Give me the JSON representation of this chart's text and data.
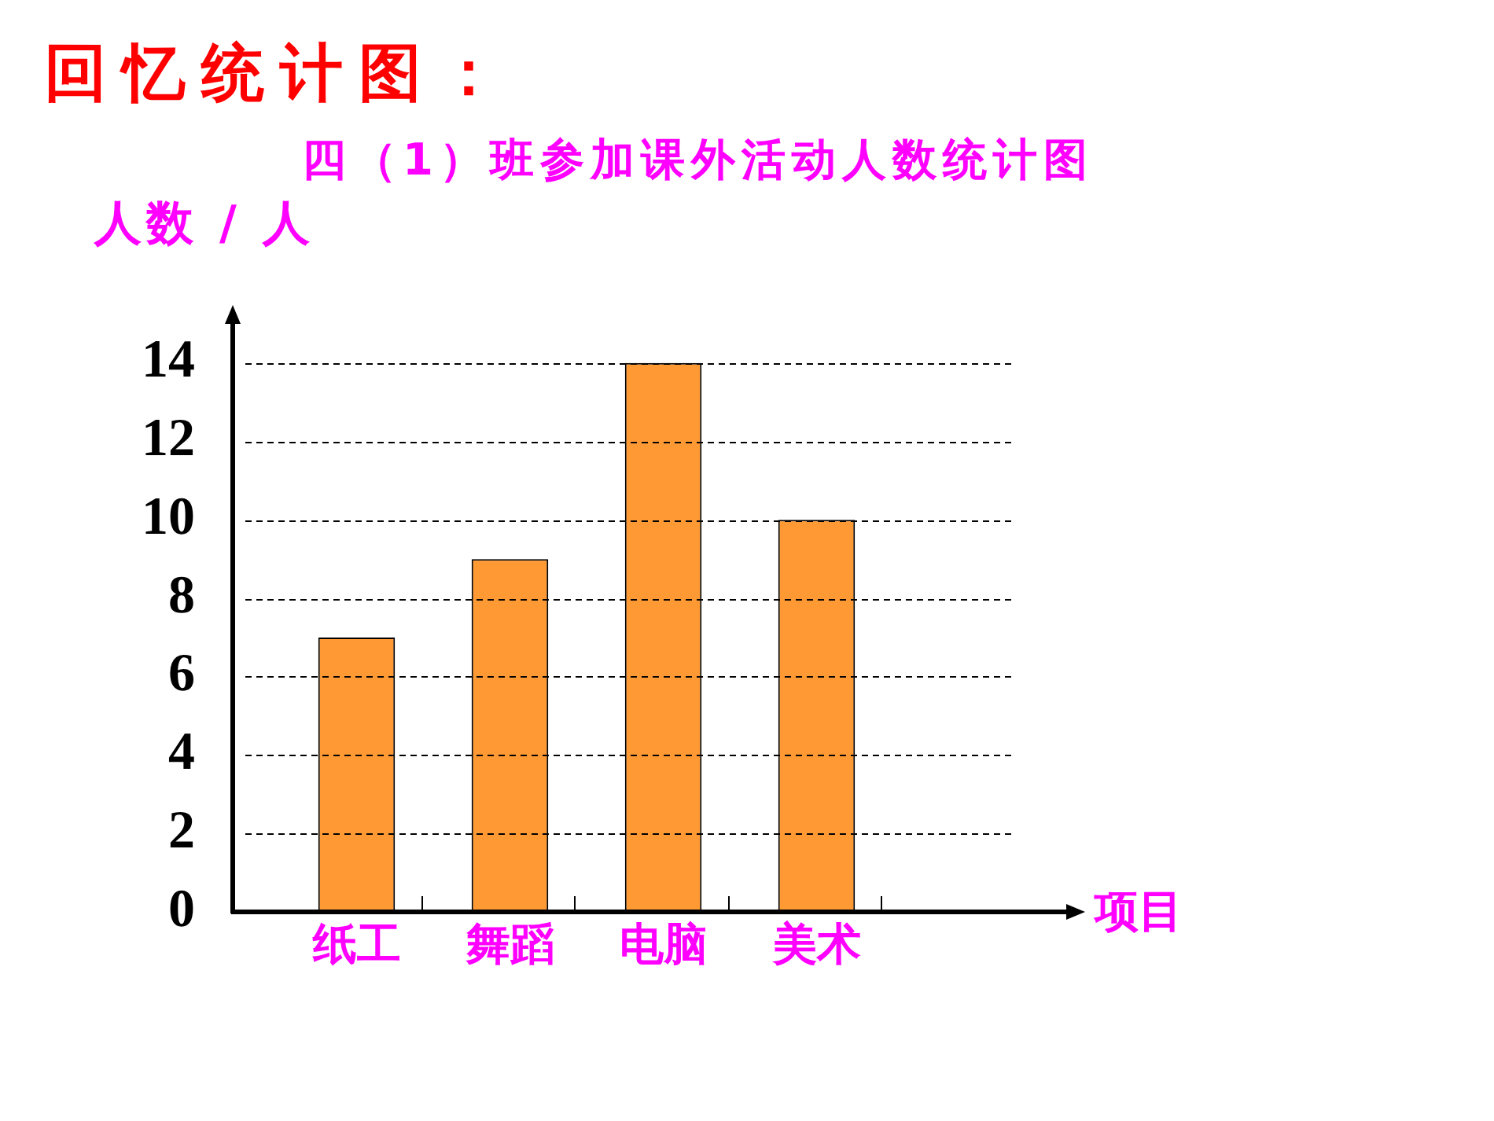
{
  "chart_data": {
    "type": "bar",
    "title": "回忆统计图：",
    "subtitle": "四（1）班参加课外活动人数统计图",
    "ylabel": "人数 / 人",
    "xlabel": "项目",
    "categories": [
      "纸工",
      "舞蹈",
      "电脑",
      "美术"
    ],
    "values": [
      7,
      9,
      14,
      10
    ],
    "color": "#ff9933",
    "ylim": [
      0,
      15
    ],
    "yticks": [
      0,
      2,
      4,
      6,
      8,
      10,
      12,
      14
    ],
    "grid": "y"
  }
}
